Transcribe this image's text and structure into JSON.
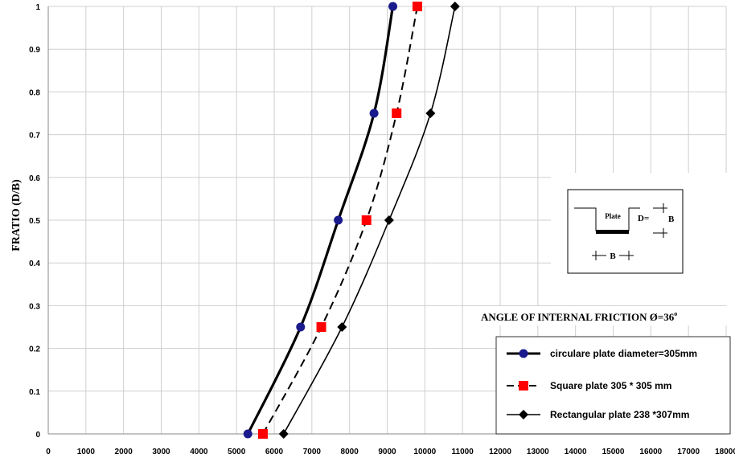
{
  "chart_data": {
    "type": "line",
    "ylabel": "FRATIO (D/B)",
    "xlim": [
      0,
      18000
    ],
    "ylim": [
      0,
      1
    ],
    "xticks": [
      0,
      1000,
      2000,
      3000,
      4000,
      5000,
      6000,
      7000,
      8000,
      9000,
      10000,
      11000,
      12000,
      13000,
      14000,
      15000,
      16000,
      17000,
      18000
    ],
    "yticks": [
      "0",
      "0.1",
      "0.2",
      "0.3",
      "0.4",
      "0.5",
      "0.6",
      "0.7",
      "0.8",
      "0.9",
      "1"
    ],
    "grid": true,
    "legend_position": "bottom-right",
    "annotation": "ANGLE OF INTERNAL FRICTION Ø=36",
    "annotation_sup": "o",
    "series": [
      {
        "name": "circulare plate diameter=305mm",
        "marker": "circle",
        "color": "#1a1a8c",
        "line": "solid-thick",
        "points": [
          [
            5300,
            0
          ],
          [
            6700,
            0.25
          ],
          [
            7700,
            0.5
          ],
          [
            8650,
            0.75
          ],
          [
            9150,
            1
          ]
        ]
      },
      {
        "name": "Square plate 305 * 305 mm",
        "marker": "square",
        "color": "#ff0000",
        "line": "dashed",
        "points": [
          [
            5700,
            0
          ],
          [
            7250,
            0.25
          ],
          [
            8450,
            0.5
          ],
          [
            9250,
            0.75
          ],
          [
            9800,
            1
          ]
        ]
      },
      {
        "name": "Rectangular plate 238 *307mm",
        "marker": "diamond",
        "color": "#000000",
        "line": "solid",
        "points": [
          [
            6250,
            0
          ],
          [
            7800,
            0.25
          ],
          [
            9050,
            0.5
          ],
          [
            10150,
            0.75
          ],
          [
            10800,
            1
          ]
        ]
      }
    ],
    "diagram": {
      "plate_label": "Plate",
      "depth_label": "D=",
      "depth_symbol": "B",
      "width_label": "B"
    }
  }
}
